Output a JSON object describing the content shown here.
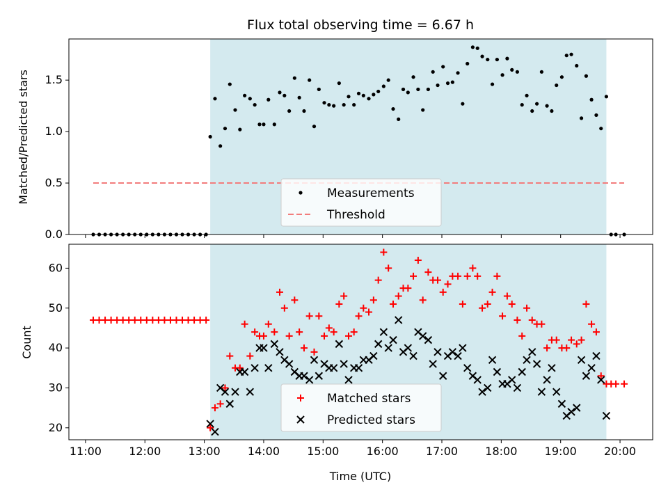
{
  "title": "Flux total observing time = 6.67 h",
  "colors": {
    "shade": "#d4eaef",
    "measurement": "#000000",
    "threshold": "#f27c7c",
    "matched": "#ff0000",
    "predicted": "#000000"
  },
  "chart_data": [
    {
      "type": "scatter",
      "panel": "top",
      "xlabel": "",
      "ylabel": "Matched/Predicted stars",
      "x_unit": "hours (UTC)",
      "xlim": [
        10.72,
        20.55
      ],
      "ylim": [
        0,
        1.9
      ],
      "yticks": [
        0,
        0.5,
        1.0,
        1.5
      ],
      "ytick_labels": [
        "0.0",
        "0.5",
        "1.0",
        "1.5"
      ],
      "grid": false,
      "legend_position": "bottom-center",
      "shaded_region_x": [
        13.1,
        19.77
      ],
      "series": [
        {
          "name": "Measurements",
          "marker": "dot",
          "x": [
            11.13,
            11.23,
            11.33,
            11.43,
            11.53,
            11.63,
            11.73,
            11.83,
            11.93,
            12.03,
            12.13,
            12.23,
            12.33,
            12.43,
            12.53,
            12.63,
            12.73,
            12.83,
            12.93,
            13.03,
            13.1,
            13.18,
            13.27,
            13.35,
            13.43,
            13.52,
            13.6,
            13.68,
            13.77,
            13.85,
            13.93,
            14.0,
            14.08,
            14.18,
            14.27,
            14.35,
            14.43,
            14.52,
            14.6,
            14.68,
            14.77,
            14.85,
            14.93,
            15.02,
            15.1,
            15.18,
            15.27,
            15.35,
            15.43,
            15.52,
            15.6,
            15.68,
            15.77,
            15.85,
            15.93,
            16.02,
            16.1,
            16.18,
            16.27,
            16.35,
            16.43,
            16.52,
            16.6,
            16.68,
            16.77,
            16.85,
            16.93,
            17.02,
            17.1,
            17.18,
            17.27,
            17.35,
            17.43,
            17.52,
            17.6,
            17.68,
            17.77,
            17.85,
            17.93,
            18.02,
            18.1,
            18.18,
            18.27,
            18.35,
            18.43,
            18.52,
            18.6,
            18.68,
            18.77,
            18.85,
            18.93,
            19.02,
            19.1,
            19.18,
            19.27,
            19.35,
            19.43,
            19.52,
            19.6,
            19.68,
            19.77,
            19.85,
            19.93,
            20.07
          ],
          "y": [
            0,
            0,
            0,
            0,
            0,
            0,
            0,
            0,
            0,
            0,
            0,
            0,
            0,
            0,
            0,
            0,
            0,
            0,
            0,
            0,
            0.95,
            1.32,
            0.86,
            1.03,
            1.46,
            1.21,
            1.02,
            1.35,
            1.32,
            1.26,
            1.07,
            1.07,
            1.31,
            1.07,
            1.38,
            1.35,
            1.2,
            1.52,
            1.33,
            1.2,
            1.5,
            1.05,
            1.41,
            1.28,
            1.26,
            1.25,
            1.47,
            1.26,
            1.34,
            1.26,
            1.37,
            1.35,
            1.32,
            1.36,
            1.39,
            1.44,
            1.5,
            1.22,
            1.12,
            1.41,
            1.38,
            1.53,
            1.41,
            1.21,
            1.41,
            1.58,
            1.45,
            1.63,
            1.47,
            1.48,
            1.57,
            1.27,
            1.66,
            1.82,
            1.81,
            1.73,
            1.7,
            1.46,
            1.7,
            1.55,
            1.71,
            1.6,
            1.58,
            1.26,
            1.35,
            1.2,
            1.27,
            1.58,
            1.25,
            1.2,
            1.45,
            1.53,
            1.74,
            1.75,
            1.64,
            1.13,
            1.54,
            1.31,
            1.16,
            1.03,
            1.34,
            0,
            0,
            0
          ]
        },
        {
          "name": "Threshold",
          "marker": "dashed-line",
          "x": [
            11.13,
            20.07
          ],
          "y": [
            0.5,
            0.5
          ]
        }
      ]
    },
    {
      "type": "scatter",
      "panel": "bottom",
      "xlabel": "Time (UTC)",
      "ylabel": "Count",
      "x_unit": "hours (UTC)",
      "xlim": [
        10.72,
        20.55
      ],
      "ylim": [
        17,
        66
      ],
      "xticks": [
        11,
        12,
        13,
        14,
        15,
        16,
        17,
        18,
        19,
        20
      ],
      "xtick_labels": [
        "11:00",
        "12:00",
        "13:00",
        "14:00",
        "15:00",
        "16:00",
        "17:00",
        "18:00",
        "19:00",
        "20:00"
      ],
      "yticks": [
        20,
        30,
        40,
        50,
        60
      ],
      "ytick_labels": [
        "20",
        "30",
        "40",
        "50",
        "60"
      ],
      "grid": false,
      "legend_position": "bottom-center",
      "shaded_region_x": [
        13.1,
        19.77
      ],
      "series": [
        {
          "name": "Matched stars",
          "marker": "plus",
          "x": [
            11.13,
            11.23,
            11.33,
            11.43,
            11.53,
            11.63,
            11.73,
            11.83,
            11.93,
            12.03,
            12.13,
            12.23,
            12.33,
            12.43,
            12.53,
            12.63,
            12.73,
            12.83,
            12.93,
            13.03,
            13.1,
            13.18,
            13.27,
            13.35,
            13.43,
            13.52,
            13.6,
            13.68,
            13.77,
            13.85,
            13.93,
            14.0,
            14.08,
            14.18,
            14.27,
            14.35,
            14.43,
            14.52,
            14.6,
            14.68,
            14.77,
            14.85,
            14.93,
            15.02,
            15.1,
            15.18,
            15.27,
            15.35,
            15.43,
            15.52,
            15.6,
            15.68,
            15.77,
            15.85,
            15.93,
            16.02,
            16.1,
            16.18,
            16.27,
            16.35,
            16.43,
            16.52,
            16.6,
            16.68,
            16.77,
            16.85,
            16.93,
            17.02,
            17.1,
            17.18,
            17.27,
            17.35,
            17.43,
            17.52,
            17.6,
            17.68,
            17.77,
            17.85,
            17.93,
            18.02,
            18.1,
            18.18,
            18.27,
            18.35,
            18.43,
            18.52,
            18.6,
            18.68,
            18.77,
            18.85,
            18.93,
            19.02,
            19.1,
            19.18,
            19.27,
            19.35,
            19.43,
            19.52,
            19.6,
            19.68,
            19.77,
            19.85,
            19.93,
            20.07
          ],
          "y": [
            47,
            47,
            47,
            47,
            47,
            47,
            47,
            47,
            47,
            47,
            47,
            47,
            47,
            47,
            47,
            47,
            47,
            47,
            47,
            47,
            20,
            25,
            26,
            30,
            38,
            35,
            35,
            46,
            38,
            44,
            43,
            43,
            46,
            44,
            54,
            50,
            43,
            52,
            44,
            40,
            48,
            39,
            48,
            43,
            45,
            44,
            51,
            53,
            43,
            44,
            48,
            50,
            49,
            52,
            57,
            64,
            60,
            51,
            53,
            55,
            55,
            58,
            62,
            52,
            59,
            57,
            57,
            54,
            56,
            58,
            58,
            51,
            58,
            60,
            58,
            50,
            51,
            54,
            58,
            48,
            53,
            51,
            47,
            43,
            50,
            47,
            46,
            46,
            40,
            42,
            42,
            40,
            40,
            42,
            41,
            42,
            51,
            46,
            44,
            33,
            31,
            31,
            31,
            31
          ]
        },
        {
          "name": "Predicted stars",
          "marker": "x",
          "x": [
            13.1,
            13.18,
            13.27,
            13.35,
            13.43,
            13.52,
            13.6,
            13.68,
            13.77,
            13.85,
            13.93,
            14.0,
            14.08,
            14.18,
            14.27,
            14.35,
            14.43,
            14.52,
            14.6,
            14.68,
            14.77,
            14.85,
            14.93,
            15.02,
            15.1,
            15.18,
            15.27,
            15.35,
            15.43,
            15.52,
            15.6,
            15.68,
            15.77,
            15.85,
            15.93,
            16.02,
            16.1,
            16.18,
            16.27,
            16.35,
            16.43,
            16.52,
            16.6,
            16.68,
            16.77,
            16.85,
            16.93,
            17.02,
            17.1,
            17.18,
            17.27,
            17.35,
            17.43,
            17.52,
            17.6,
            17.68,
            17.77,
            17.85,
            17.93,
            18.02,
            18.1,
            18.18,
            18.27,
            18.35,
            18.43,
            18.52,
            18.6,
            18.68,
            18.77,
            18.85,
            18.93,
            19.02,
            19.1,
            19.18,
            19.27,
            19.35,
            19.43,
            19.52,
            19.6,
            19.68,
            19.77
          ],
          "y": [
            21,
            19,
            30,
            29,
            26,
            29,
            34,
            34,
            29,
            35,
            40,
            40,
            35,
            41,
            39,
            37,
            36,
            34,
            33,
            33,
            32,
            37,
            33,
            36,
            35,
            35,
            41,
            36,
            32,
            35,
            35,
            37,
            37,
            38,
            41,
            44,
            40,
            42,
            47,
            39,
            40,
            38,
            44,
            43,
            42,
            36,
            39,
            33,
            38,
            39,
            38,
            40,
            35,
            33,
            32,
            29,
            30,
            37,
            34,
            31,
            31,
            32,
            30,
            34,
            37,
            39,
            36,
            29,
            32,
            35,
            29,
            26,
            23,
            24,
            25,
            37,
            33,
            35,
            38,
            32,
            23
          ]
        }
      ]
    }
  ]
}
